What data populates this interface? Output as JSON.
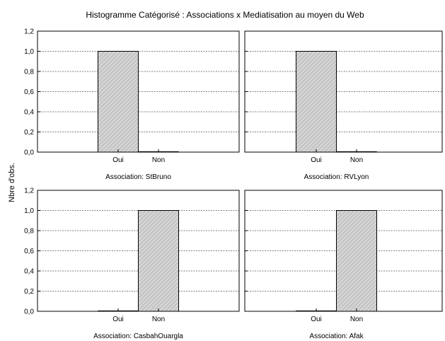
{
  "title": "Histogramme Catégorisé : Associations x Mediatisation au moyen du Web",
  "ylabel": "Nbre d'obs.",
  "bar_fill": "#d4d4d4",
  "chart_data": {
    "type": "bar",
    "title": "Histogramme Catégorisé : Associations x Mediatisation au moyen du Web",
    "ylabel": "Nbre d'obs.",
    "xlabel": "",
    "ylim": [
      0,
      1.2
    ],
    "yticks": [
      "0,0",
      "0,2",
      "0,4",
      "0,6",
      "0,8",
      "1,0",
      "1,2"
    ],
    "categories": [
      "Oui",
      "Non"
    ],
    "grid": true,
    "panels": [
      {
        "label": "Association: StBruno",
        "values": [
          1,
          0
        ]
      },
      {
        "label": "Association: RVLyon",
        "values": [
          1,
          0
        ]
      },
      {
        "label": "Association: CasbahOuargla",
        "values": [
          0,
          1
        ]
      },
      {
        "label": "Association: Afak",
        "values": [
          0,
          1
        ]
      }
    ]
  }
}
